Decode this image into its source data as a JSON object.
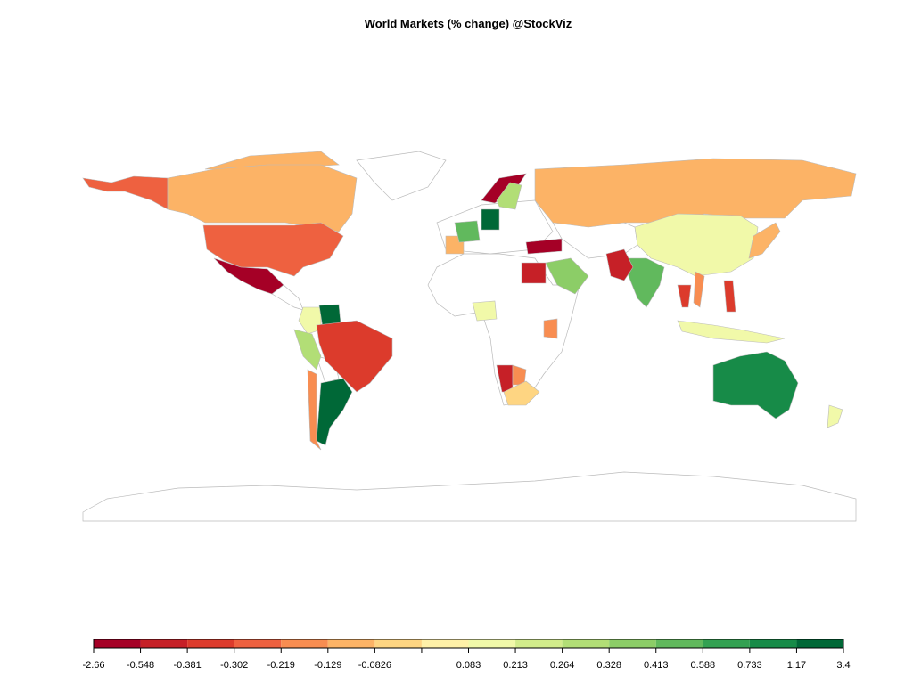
{
  "chart_data": {
    "type": "choropleth",
    "title": "World Markets (% change) @StockViz",
    "legend": {
      "breaks": [
        -2.66,
        -0.548,
        -0.381,
        -0.302,
        -0.219,
        -0.129,
        -0.0826,
        null,
        0.083,
        0.213,
        0.264,
        0.328,
        0.413,
        0.588,
        0.733,
        1.17,
        3.4
      ],
      "colors": [
        "#a50026",
        "#c62027",
        "#dc3b2c",
        "#ee6140",
        "#f88d51",
        "#fcb366",
        "#fed582",
        "#fff1a8",
        "#f1f9a9",
        "#d2ec8b",
        "#b2de76",
        "#8ccd67",
        "#61b95d",
        "#33a152",
        "#178b48",
        "#006837"
      ]
    }
  }
}
